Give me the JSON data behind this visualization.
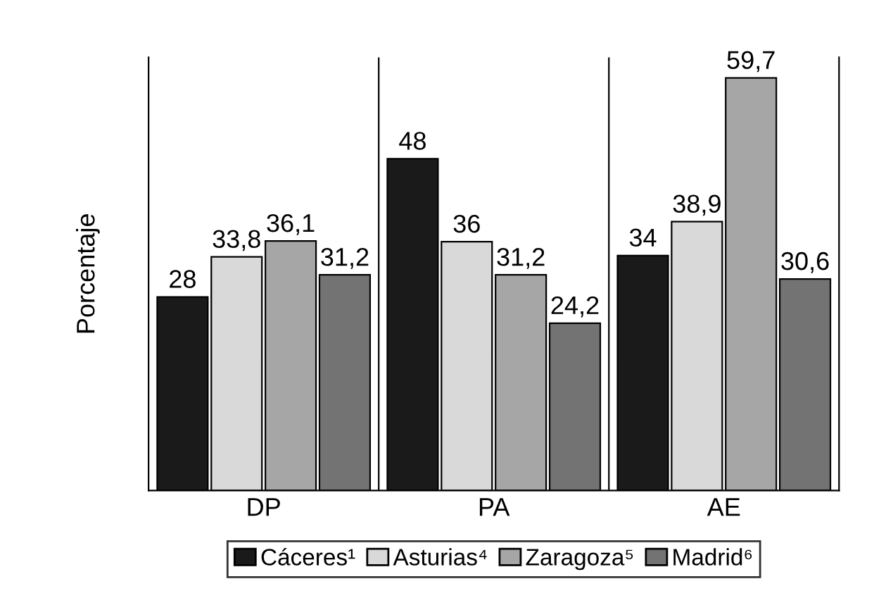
{
  "chart_data": {
    "type": "bar",
    "ylabel": "Porcentaje",
    "categories": [
      "DP",
      "PA",
      "AE"
    ],
    "series": [
      {
        "name": "Cáceres¹",
        "color": "#1a1a1a",
        "values": [
          28,
          48,
          34
        ],
        "value_labels": [
          "28",
          "48",
          "34"
        ]
      },
      {
        "name": "Asturias⁴",
        "color": "#d9d9d9",
        "values": [
          33.8,
          36,
          38.9
        ],
        "value_labels": [
          "33,8",
          "36",
          "38,9"
        ]
      },
      {
        "name": "Zaragoza⁵",
        "color": "#a6a6a6",
        "values": [
          36.1,
          31.2,
          59.7
        ],
        "value_labels": [
          "36,1",
          "31,2",
          "59,7"
        ]
      },
      {
        "name": "Madrid⁶",
        "color": "#737373",
        "values": [
          31.2,
          24.2,
          30.6
        ],
        "value_labels": [
          "31,2",
          "24,2",
          "30,6"
        ]
      }
    ],
    "legend": "bottom",
    "grid": false
  }
}
